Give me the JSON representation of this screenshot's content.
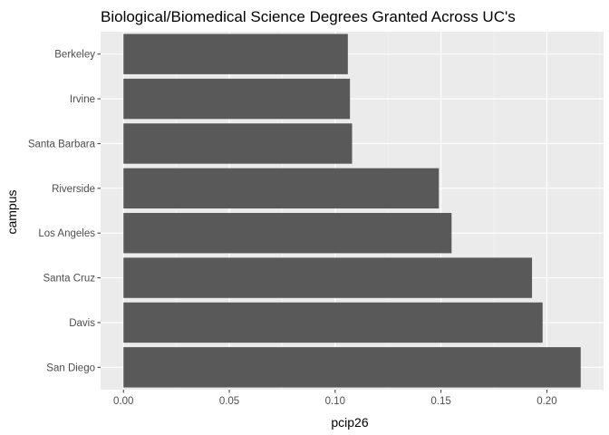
{
  "chart_data": {
    "type": "bar",
    "orientation": "horizontal",
    "title": "Biological/Biomedical Science Degrees Granted Across UC's",
    "xlabel": "pcip26",
    "ylabel": "campus",
    "categories": [
      "Berkeley",
      "Irvine",
      "Santa Barbara",
      "Riverside",
      "Los Angeles",
      "Santa Cruz",
      "Davis",
      "San Diego"
    ],
    "values": [
      0.106,
      0.107,
      0.108,
      0.149,
      0.155,
      0.193,
      0.198,
      0.216
    ],
    "xlim": [
      -0.0108,
      0.2268
    ],
    "xticks": [
      0.0,
      0.05,
      0.1,
      0.15,
      0.2
    ],
    "xtick_labels": [
      "0.00",
      "0.05",
      "0.10",
      "0.15",
      "0.20"
    ],
    "grid": true,
    "colors": {
      "bar": "#595959",
      "panel": "#ebebeb",
      "grid_major": "#ffffff",
      "grid_minor": "#f5f5f5"
    }
  }
}
